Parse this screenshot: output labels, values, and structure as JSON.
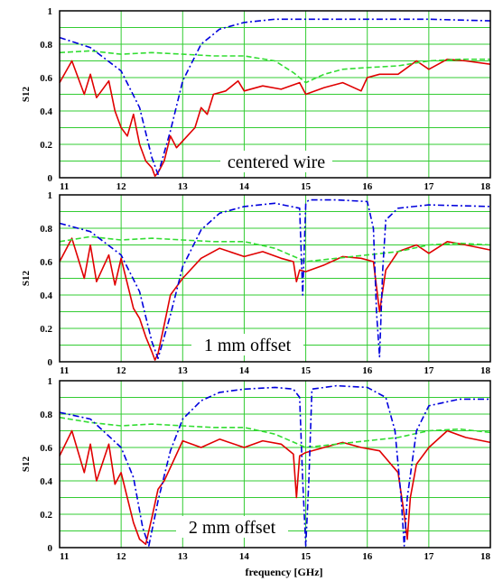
{
  "colors": {
    "series_red": "#e00000",
    "series_green": "#33dd33",
    "series_blue": "#0000dd",
    "grid": "#33cc33",
    "frame": "#000000"
  },
  "chart_data": [
    {
      "type": "line",
      "ylabel": "S12",
      "xlim": [
        11,
        18
      ],
      "ylim": [
        0,
        1
      ],
      "x_ticks": [
        "11",
        "12",
        "13",
        "14",
        "15",
        "16",
        "17",
        "18"
      ],
      "y_ticks": [
        "0",
        "0.2",
        "0.4",
        "0.6",
        "0.8",
        "1"
      ],
      "grid": true,
      "annotation": "centered wire",
      "series": [
        {
          "color": "#e00000",
          "style": "solid",
          "x": [
            11.0,
            11.2,
            11.4,
            11.5,
            11.6,
            11.8,
            11.9,
            12.0,
            12.1,
            12.2,
            12.3,
            12.4,
            12.5,
            12.55,
            12.6,
            12.7,
            12.8,
            12.9,
            13.0,
            13.2,
            13.3,
            13.4,
            13.5,
            13.7,
            13.9,
            14.0,
            14.3,
            14.6,
            14.9,
            15.0,
            15.3,
            15.6,
            15.9,
            16.0,
            16.2,
            16.5,
            16.8,
            17.0,
            17.3,
            17.6,
            18.0
          ],
          "y": [
            0.57,
            0.7,
            0.5,
            0.62,
            0.48,
            0.58,
            0.4,
            0.3,
            0.25,
            0.38,
            0.2,
            0.1,
            0.06,
            0.01,
            0.03,
            0.1,
            0.25,
            0.18,
            0.22,
            0.3,
            0.42,
            0.38,
            0.5,
            0.52,
            0.58,
            0.52,
            0.55,
            0.53,
            0.57,
            0.5,
            0.54,
            0.57,
            0.52,
            0.6,
            0.62,
            0.62,
            0.7,
            0.65,
            0.71,
            0.7,
            0.68
          ]
        },
        {
          "color": "#33dd33",
          "style": "dashed",
          "x": [
            11.0,
            11.5,
            12.0,
            12.5,
            13.0,
            13.5,
            14.0,
            14.5,
            14.8,
            15.0,
            15.3,
            15.6,
            16.0,
            16.5,
            17.0,
            17.5,
            18.0
          ],
          "y": [
            0.75,
            0.76,
            0.74,
            0.75,
            0.74,
            0.73,
            0.73,
            0.7,
            0.63,
            0.57,
            0.62,
            0.65,
            0.66,
            0.67,
            0.7,
            0.71,
            0.71
          ]
        },
        {
          "color": "#0000dd",
          "style": "dashdot",
          "x": [
            11.0,
            11.5,
            12.0,
            12.3,
            12.5,
            12.6,
            12.8,
            13.0,
            13.3,
            13.6,
            14.0,
            14.5,
            15.0,
            15.5,
            16.0,
            17.0,
            18.0
          ],
          "y": [
            0.84,
            0.78,
            0.64,
            0.42,
            0.12,
            0.02,
            0.28,
            0.58,
            0.8,
            0.89,
            0.93,
            0.95,
            0.95,
            0.95,
            0.95,
            0.95,
            0.94
          ]
        }
      ]
    },
    {
      "type": "line",
      "ylabel": "S12",
      "xlim": [
        11,
        18
      ],
      "ylim": [
        0,
        1
      ],
      "x_ticks": [
        "11",
        "12",
        "13",
        "14",
        "15",
        "16",
        "17",
        "18"
      ],
      "y_ticks": [
        "0",
        "0.2",
        "0.4",
        "0.6",
        "0.8",
        "1"
      ],
      "grid": true,
      "annotation": "1 mm offset",
      "series": [
        {
          "color": "#e00000",
          "style": "solid",
          "x": [
            11.0,
            11.2,
            11.4,
            11.5,
            11.6,
            11.8,
            11.9,
            12.0,
            12.2,
            12.3,
            12.4,
            12.5,
            12.55,
            12.6,
            12.7,
            12.8,
            12.9,
            13.0,
            13.3,
            13.6,
            14.0,
            14.3,
            14.6,
            14.8,
            14.85,
            14.9,
            15.0,
            15.3,
            15.6,
            15.9,
            16.1,
            16.2,
            16.3,
            16.5,
            16.8,
            17.0,
            17.3,
            17.6,
            18.0
          ],
          "y": [
            0.6,
            0.74,
            0.5,
            0.7,
            0.48,
            0.64,
            0.46,
            0.62,
            0.32,
            0.26,
            0.15,
            0.06,
            0.01,
            0.05,
            0.22,
            0.4,
            0.45,
            0.5,
            0.62,
            0.68,
            0.63,
            0.66,
            0.62,
            0.6,
            0.48,
            0.55,
            0.54,
            0.58,
            0.63,
            0.62,
            0.6,
            0.3,
            0.55,
            0.66,
            0.7,
            0.65,
            0.72,
            0.7,
            0.67
          ]
        },
        {
          "color": "#33dd33",
          "style": "dashed",
          "x": [
            11.0,
            11.5,
            12.0,
            12.5,
            13.0,
            13.5,
            14.0,
            14.5,
            15.0,
            15.5,
            16.0,
            16.5,
            17.0,
            17.5,
            18.0
          ],
          "y": [
            0.72,
            0.75,
            0.73,
            0.74,
            0.73,
            0.72,
            0.72,
            0.68,
            0.6,
            0.62,
            0.64,
            0.66,
            0.7,
            0.71,
            0.7
          ]
        },
        {
          "color": "#0000dd",
          "style": "dashdot",
          "x": [
            11.0,
            11.5,
            12.0,
            12.3,
            12.5,
            12.6,
            12.8,
            13.0,
            13.3,
            13.6,
            14.0,
            14.5,
            14.9,
            14.95,
            15.0,
            15.05,
            15.1,
            15.5,
            16.0,
            16.1,
            16.15,
            16.2,
            16.25,
            16.3,
            16.5,
            17.0,
            18.0
          ],
          "y": [
            0.83,
            0.78,
            0.64,
            0.42,
            0.12,
            0.02,
            0.28,
            0.57,
            0.79,
            0.89,
            0.93,
            0.95,
            0.92,
            0.4,
            0.95,
            0.97,
            0.97,
            0.97,
            0.96,
            0.8,
            0.3,
            0.03,
            0.55,
            0.85,
            0.92,
            0.94,
            0.93
          ]
        }
      ]
    },
    {
      "type": "line",
      "ylabel": "S12",
      "xlabel": "frequency [GHz]",
      "xlim": [
        11,
        18
      ],
      "ylim": [
        0,
        1
      ],
      "x_ticks": [
        "11",
        "12",
        "13",
        "14",
        "15",
        "16",
        "17",
        "18"
      ],
      "y_ticks": [
        "0",
        "0.2",
        "0.4",
        "0.6",
        "0.8",
        "1"
      ],
      "grid": true,
      "annotation": "2 mm offset",
      "series": [
        {
          "color": "#e00000",
          "style": "solid",
          "x": [
            11.0,
            11.2,
            11.4,
            11.5,
            11.6,
            11.8,
            11.9,
            12.0,
            12.2,
            12.3,
            12.4,
            12.5,
            12.6,
            12.7,
            12.8,
            13.0,
            13.3,
            13.6,
            14.0,
            14.3,
            14.6,
            14.8,
            14.85,
            14.9,
            15.0,
            15.3,
            15.6,
            15.9,
            16.2,
            16.5,
            16.6,
            16.65,
            16.7,
            16.8,
            17.0,
            17.3,
            17.6,
            18.0
          ],
          "y": [
            0.55,
            0.7,
            0.45,
            0.62,
            0.4,
            0.62,
            0.38,
            0.45,
            0.15,
            0.05,
            0.02,
            0.18,
            0.35,
            0.4,
            0.48,
            0.64,
            0.6,
            0.65,
            0.6,
            0.64,
            0.62,
            0.56,
            0.3,
            0.55,
            0.57,
            0.6,
            0.63,
            0.6,
            0.58,
            0.45,
            0.2,
            0.05,
            0.3,
            0.5,
            0.6,
            0.7,
            0.66,
            0.63
          ]
        },
        {
          "color": "#33dd33",
          "style": "dashed",
          "x": [
            11.0,
            11.5,
            12.0,
            12.5,
            13.0,
            13.5,
            14.0,
            14.5,
            15.0,
            15.5,
            16.0,
            16.5,
            17.0,
            17.5,
            18.0
          ],
          "y": [
            0.78,
            0.75,
            0.73,
            0.74,
            0.73,
            0.72,
            0.72,
            0.68,
            0.6,
            0.62,
            0.64,
            0.66,
            0.7,
            0.71,
            0.69
          ]
        },
        {
          "color": "#0000dd",
          "style": "dashdot",
          "x": [
            11.0,
            11.5,
            12.0,
            12.2,
            12.35,
            12.45,
            12.6,
            12.8,
            13.0,
            13.3,
            13.6,
            14.0,
            14.5,
            14.8,
            14.9,
            14.95,
            15.0,
            15.05,
            15.1,
            15.5,
            16.0,
            16.3,
            16.45,
            16.55,
            16.6,
            16.65,
            16.8,
            17.0,
            17.5,
            18.0
          ],
          "y": [
            0.81,
            0.77,
            0.6,
            0.42,
            0.12,
            0.01,
            0.28,
            0.58,
            0.77,
            0.88,
            0.93,
            0.95,
            0.96,
            0.95,
            0.9,
            0.4,
            0.01,
            0.4,
            0.95,
            0.97,
            0.96,
            0.9,
            0.7,
            0.3,
            0.01,
            0.3,
            0.7,
            0.85,
            0.89,
            0.89
          ]
        }
      ]
    }
  ]
}
